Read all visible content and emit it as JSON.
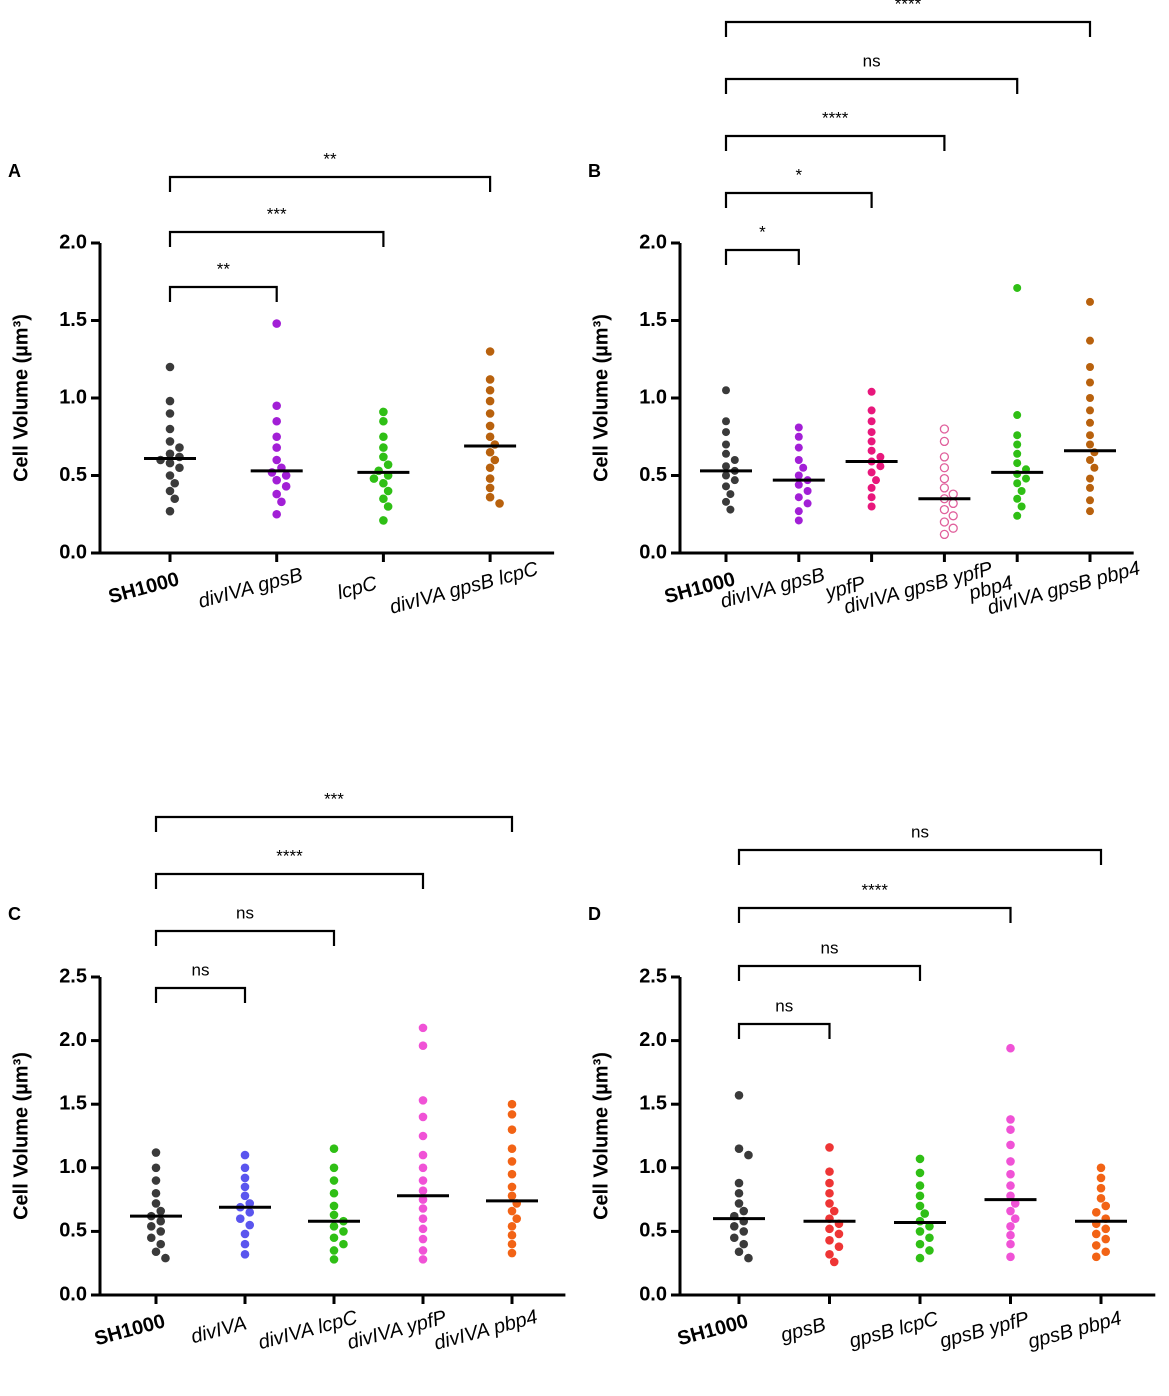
{
  "chart_data": [
    {
      "type": "dot",
      "panel": "A",
      "ylabel": "Cell Volume (µm³)",
      "ylim": [
        0,
        2
      ],
      "yticks": [
        {
          "value": 0,
          "label": "0.0"
        },
        {
          "value": 0.5,
          "label": "0.5"
        },
        {
          "value": 1,
          "label": "1.0"
        },
        {
          "value": 1.5,
          "label": "1.5"
        },
        {
          "value": 2,
          "label": "2.0"
        }
      ],
      "categories": [
        "SH1000",
        "divIVA gpsB",
        "lcpC",
        "divIVA gpsB lcpC"
      ],
      "groups": [
        {
          "color": "#3a3a3a",
          "mean": 0.61,
          "values": [
            1.2,
            0.98,
            0.9,
            0.8,
            0.72,
            0.68,
            0.64,
            0.62,
            0.6,
            0.58,
            0.55,
            0.5,
            0.45,
            0.4,
            0.35,
            0.27
          ]
        },
        {
          "color": "#a21fd6",
          "mean": 0.53,
          "values": [
            1.48,
            0.95,
            0.85,
            0.75,
            0.68,
            0.6,
            0.55,
            0.52,
            0.5,
            0.47,
            0.43,
            0.38,
            0.33,
            0.25
          ]
        },
        {
          "color": "#2fbf15",
          "mean": 0.52,
          "values": [
            0.91,
            0.85,
            0.75,
            0.68,
            0.62,
            0.57,
            0.53,
            0.5,
            0.48,
            0.45,
            0.4,
            0.35,
            0.3,
            0.21
          ]
        },
        {
          "color": "#b8610d",
          "mean": 0.69,
          "values": [
            1.3,
            1.12,
            1.05,
            0.98,
            0.9,
            0.82,
            0.75,
            0.7,
            0.65,
            0.6,
            0.55,
            0.48,
            0.42,
            0.36,
            0.32
          ]
        }
      ],
      "comparisons": [
        {
          "pair": [
            0,
            1
          ],
          "label": "**"
        },
        {
          "pair": [
            0,
            2
          ],
          "label": "***"
        },
        {
          "pair": [
            0,
            3
          ],
          "label": "**"
        }
      ]
    },
    {
      "type": "dot",
      "panel": "B",
      "ylabel": "Cell Volume (µm³)",
      "ylim": [
        0,
        2
      ],
      "yticks": [
        {
          "value": 0,
          "label": "0.0"
        },
        {
          "value": 0.5,
          "label": "0.5"
        },
        {
          "value": 1,
          "label": "1.0"
        },
        {
          "value": 1.5,
          "label": "1.5"
        },
        {
          "value": 2,
          "label": "2.0"
        }
      ],
      "categories": [
        "SH1000",
        "divIVA gpsB",
        "ypfP",
        "divIVA gpsB ypfP",
        "pbp4",
        "divIVA gpsB pbp4"
      ],
      "groups": [
        {
          "color": "#3a3a3a",
          "mean": 0.53,
          "values": [
            1.05,
            0.85,
            0.78,
            0.7,
            0.64,
            0.6,
            0.56,
            0.53,
            0.5,
            0.47,
            0.43,
            0.38,
            0.33,
            0.28
          ]
        },
        {
          "color": "#a21fd6",
          "mean": 0.47,
          "values": [
            0.81,
            0.75,
            0.68,
            0.6,
            0.55,
            0.5,
            0.47,
            0.44,
            0.4,
            0.36,
            0.32,
            0.27,
            0.21
          ]
        },
        {
          "color": "#e8177c",
          "mean": 0.59,
          "values": [
            1.04,
            0.92,
            0.85,
            0.78,
            0.72,
            0.66,
            0.62,
            0.59,
            0.56,
            0.52,
            0.47,
            0.42,
            0.36,
            0.3
          ]
        },
        {
          "color": "#e0609c",
          "hollow": true,
          "mean": 0.35,
          "values": [
            0.8,
            0.72,
            0.62,
            0.55,
            0.48,
            0.42,
            0.38,
            0.35,
            0.32,
            0.28,
            0.24,
            0.2,
            0.16,
            0.12
          ]
        },
        {
          "color": "#2fbf15",
          "mean": 0.52,
          "values": [
            1.71,
            0.89,
            0.76,
            0.7,
            0.64,
            0.58,
            0.54,
            0.51,
            0.48,
            0.45,
            0.4,
            0.35,
            0.3,
            0.24
          ]
        },
        {
          "color": "#b8610d",
          "mean": 0.66,
          "values": [
            1.62,
            1.37,
            1.2,
            1.1,
            1.0,
            0.92,
            0.84,
            0.76,
            0.7,
            0.65,
            0.6,
            0.55,
            0.48,
            0.42,
            0.34,
            0.27
          ]
        }
      ],
      "comparisons": [
        {
          "pair": [
            0,
            1
          ],
          "label": "*"
        },
        {
          "pair": [
            0,
            2
          ],
          "label": "*"
        },
        {
          "pair": [
            0,
            3
          ],
          "label": "****"
        },
        {
          "pair": [
            0,
            4
          ],
          "label": "ns"
        },
        {
          "pair": [
            0,
            5
          ],
          "label": "****"
        }
      ]
    },
    {
      "type": "dot",
      "panel": "C",
      "ylabel": "Cell Volume (µm³)",
      "ylim": [
        0,
        2.5
      ],
      "yticks": [
        {
          "value": 0,
          "label": "0.0"
        },
        {
          "value": 0.5,
          "label": "0.5"
        },
        {
          "value": 1,
          "label": "1.0"
        },
        {
          "value": 1.5,
          "label": "1.5"
        },
        {
          "value": 2,
          "label": "2.0"
        },
        {
          "value": 2.5,
          "label": "2.5"
        }
      ],
      "categories": [
        "SH1000",
        "divIVA",
        "divIVA lcpC",
        "divIVA ypfP",
        "divIVA pbp4"
      ],
      "groups": [
        {
          "color": "#3a3a3a",
          "mean": 0.62,
          "values": [
            1.12,
            1.0,
            0.9,
            0.8,
            0.72,
            0.66,
            0.62,
            0.58,
            0.54,
            0.5,
            0.45,
            0.4,
            0.34,
            0.29
          ]
        },
        {
          "color": "#5a55ee",
          "mean": 0.69,
          "values": [
            1.1,
            1.0,
            0.92,
            0.85,
            0.78,
            0.72,
            0.69,
            0.65,
            0.6,
            0.55,
            0.48,
            0.4,
            0.32
          ]
        },
        {
          "color": "#2fbf15",
          "mean": 0.58,
          "values": [
            1.15,
            1.0,
            0.9,
            0.8,
            0.7,
            0.63,
            0.58,
            0.54,
            0.5,
            0.45,
            0.4,
            0.35,
            0.28
          ]
        },
        {
          "color": "#f052d6",
          "mean": 0.78,
          "values": [
            2.1,
            1.96,
            1.53,
            1.4,
            1.25,
            1.1,
            1.0,
            0.9,
            0.82,
            0.75,
            0.68,
            0.6,
            0.52,
            0.44,
            0.35,
            0.28
          ]
        },
        {
          "color": "#f26315",
          "mean": 0.74,
          "values": [
            1.5,
            1.42,
            1.3,
            1.15,
            1.05,
            0.95,
            0.85,
            0.78,
            0.72,
            0.66,
            0.6,
            0.54,
            0.47,
            0.4,
            0.33
          ]
        }
      ],
      "comparisons": [
        {
          "pair": [
            0,
            1
          ],
          "label": "ns"
        },
        {
          "pair": [
            0,
            2
          ],
          "label": "ns"
        },
        {
          "pair": [
            0,
            3
          ],
          "label": "****"
        },
        {
          "pair": [
            0,
            4
          ],
          "label": "***"
        }
      ]
    },
    {
      "type": "dot",
      "panel": "D",
      "ylabel": "Cell Volume (µm³)",
      "ylim": [
        0,
        2.5
      ],
      "yticks": [
        {
          "value": 0,
          "label": "0.0"
        },
        {
          "value": 0.5,
          "label": "0.5"
        },
        {
          "value": 1,
          "label": "1.0"
        },
        {
          "value": 1.5,
          "label": "1.5"
        },
        {
          "value": 2,
          "label": "2.0"
        },
        {
          "value": 2.5,
          "label": "2.5"
        }
      ],
      "categories": [
        "SH1000",
        "gpsB",
        "gpsB lcpC",
        "gpsB ypfP",
        "gpsB pbp4"
      ],
      "groups": [
        {
          "color": "#3a3a3a",
          "mean": 0.6,
          "values": [
            1.57,
            1.15,
            1.1,
            0.88,
            0.8,
            0.72,
            0.66,
            0.62,
            0.58,
            0.54,
            0.5,
            0.45,
            0.4,
            0.34,
            0.29
          ]
        },
        {
          "color": "#ee3535",
          "mean": 0.58,
          "values": [
            1.16,
            0.97,
            0.88,
            0.8,
            0.72,
            0.66,
            0.6,
            0.56,
            0.52,
            0.48,
            0.43,
            0.38,
            0.32,
            0.26
          ]
        },
        {
          "color": "#2fbf15",
          "mean": 0.57,
          "values": [
            1.07,
            0.96,
            0.86,
            0.78,
            0.7,
            0.64,
            0.58,
            0.54,
            0.5,
            0.45,
            0.4,
            0.35,
            0.29
          ]
        },
        {
          "color": "#f052d6",
          "mean": 0.75,
          "values": [
            1.94,
            1.38,
            1.3,
            1.18,
            1.05,
            0.95,
            0.86,
            0.78,
            0.72,
            0.66,
            0.6,
            0.54,
            0.47,
            0.4,
            0.3
          ]
        },
        {
          "color": "#f26315",
          "mean": 0.58,
          "values": [
            1.0,
            0.92,
            0.84,
            0.76,
            0.7,
            0.65,
            0.6,
            0.56,
            0.52,
            0.48,
            0.44,
            0.39,
            0.34,
            0.3
          ]
        }
      ],
      "comparisons": [
        {
          "pair": [
            0,
            1
          ],
          "label": "ns"
        },
        {
          "pair": [
            0,
            2
          ],
          "label": "ns"
        },
        {
          "pair": [
            0,
            3
          ],
          "label": "****"
        },
        {
          "pair": [
            0,
            4
          ],
          "label": "ns"
        }
      ]
    }
  ]
}
